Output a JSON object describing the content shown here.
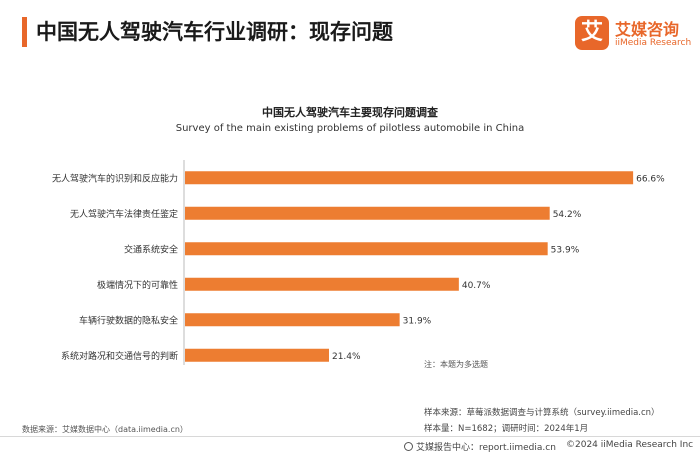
{
  "header": {
    "title": "中国无人驾驶汽车行业调研：现存问题",
    "logo_badge": "艾",
    "logo_cn": "艾媒咨询",
    "logo_en": "iiMedia Research"
  },
  "chart_data": {
    "type": "bar",
    "orientation": "horizontal",
    "title": "中国无人驾驶汽车主要现存问题调查",
    "subtitle": "Survey of the main existing problems of pilotless automobile in China",
    "categories": [
      "无人驾驶汽车的识别和反应能力",
      "无人驾驶汽车法律责任鉴定",
      "交通系统安全",
      "极端情况下的可靠性",
      "车辆行驶数据的隐私安全",
      "系统对路况和交通信号的判断"
    ],
    "values": [
      66.6,
      54.2,
      53.9,
      40.7,
      31.9,
      21.4
    ],
    "value_labels": [
      "66.6%",
      "54.2%",
      "53.9%",
      "40.7%",
      "31.9%",
      "21.4%"
    ],
    "unit": "%",
    "xlim": [
      0,
      70
    ],
    "grid": false,
    "bar_color": "#ed7d31"
  },
  "notes": {
    "note": "注：本题为多选题",
    "data_source": "数据来源：艾媒数据中心（data.iimedia.cn）",
    "sample_source": "样本来源：草莓派数据调查与计算系统（survey.iimedia.cn）",
    "sample_info": "样本量：N=1682；调研时间：2024年1月"
  },
  "footer": {
    "report_center": "艾媒报告中心：report.iimedia.cn",
    "copyright": "©2024  iiMedia Research  Inc"
  }
}
